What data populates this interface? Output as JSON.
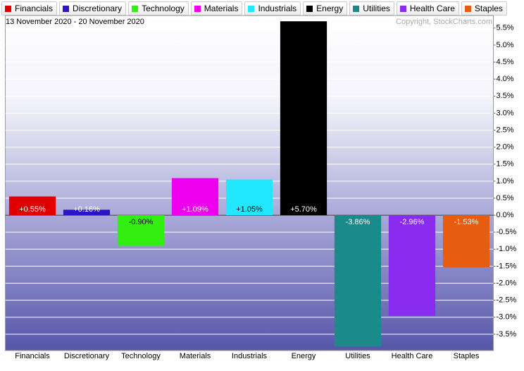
{
  "chart_data": {
    "type": "bar",
    "subtitle": "13 November 2020 - 20 November 2020",
    "annotation": "Copyright, StockCharts.com",
    "categories": [
      "Financials",
      "Discretionary",
      "Technology",
      "Materials",
      "Industrials",
      "Energy",
      "Utilities",
      "Health Care",
      "Staples"
    ],
    "values": [
      0.55,
      0.16,
      -0.9,
      1.09,
      1.05,
      5.7,
      -3.86,
      -2.96,
      -1.53
    ],
    "value_labels": [
      "+0.55%",
      "+0.16%",
      "-0.90%",
      "+1.09%",
      "+1.05%",
      "+5.70%",
      "-3.86%",
      "-2.96%",
      "-1.53%"
    ],
    "colors": [
      "#e00000",
      "#2a14c4",
      "#33ee11",
      "#ee00ee",
      "#22e8ff",
      "#000000",
      "#1a8a8a",
      "#8a2cf0",
      "#e85c10"
    ],
    "ylim": [
      -3.98,
      5.87
    ],
    "yticks": [
      {
        "value": 5.5,
        "label": "5.5%"
      },
      {
        "value": 5.0,
        "label": "5.0%"
      },
      {
        "value": 4.5,
        "label": "4.5%"
      },
      {
        "value": 4.0,
        "label": "4.0%"
      },
      {
        "value": 3.5,
        "label": "3.5%"
      },
      {
        "value": 3.0,
        "label": "3.0%"
      },
      {
        "value": 2.5,
        "label": "2.5%"
      },
      {
        "value": 2.0,
        "label": "2.0%"
      },
      {
        "value": 1.5,
        "label": "1.5%"
      },
      {
        "value": 1.0,
        "label": "1.0%"
      },
      {
        "value": 0.5,
        "label": "0.5%"
      },
      {
        "value": 0.0,
        "label": "0.0%"
      },
      {
        "value": -0.5,
        "label": "-0.5%"
      },
      {
        "value": -1.0,
        "label": "-1.0%"
      },
      {
        "value": -1.5,
        "label": "-1.5%"
      },
      {
        "value": -2.0,
        "label": "-2.0%"
      },
      {
        "value": -2.5,
        "label": "-2.5%"
      },
      {
        "value": -3.0,
        "label": "-3.0%"
      },
      {
        "value": -3.5,
        "label": "-3.5%"
      }
    ],
    "grid": true
  }
}
